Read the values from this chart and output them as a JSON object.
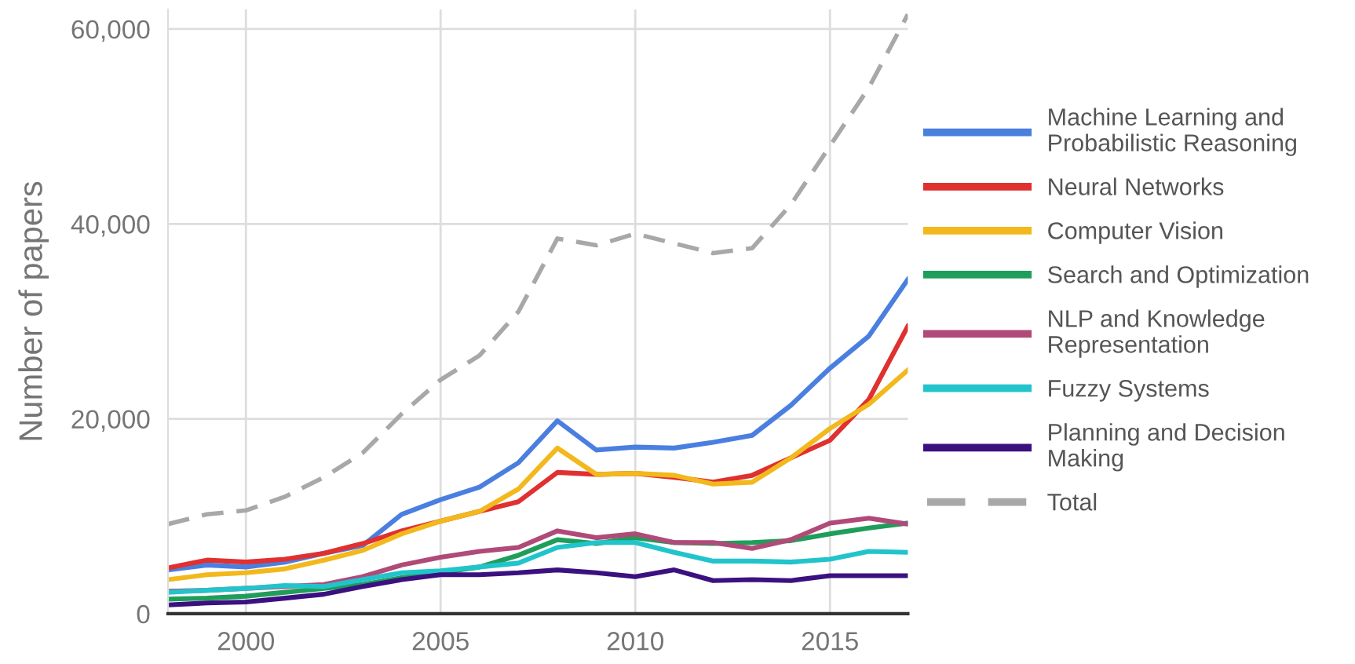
{
  "chart_data": {
    "type": "line",
    "ylabel": "Number of papers",
    "x": [
      1998,
      1999,
      2000,
      2001,
      2002,
      2003,
      2004,
      2005,
      2006,
      2007,
      2008,
      2009,
      2010,
      2011,
      2012,
      2013,
      2014,
      2015,
      2016,
      2017
    ],
    "xlim": [
      1998,
      2017
    ],
    "xticks": [
      2000,
      2005,
      2010,
      2015
    ],
    "ylim": [
      0,
      62000
    ],
    "yticks": [
      {
        "value": 0,
        "label": "0"
      },
      {
        "value": 20000,
        "label": "20,000"
      },
      {
        "value": 40000,
        "label": "40,000"
      },
      {
        "value": 60000,
        "label": "60,000"
      }
    ],
    "grid": true,
    "legend": "right",
    "series": [
      {
        "name": "Machine Learning and Probabilistic Reasoning",
        "color": "#4a7fe0",
        "values": [
          4500,
          5000,
          4800,
          5300,
          6200,
          7000,
          10200,
          11700,
          13000,
          15500,
          19800,
          16800,
          17100,
          17000,
          17600,
          18300,
          21400,
          25200,
          28500,
          34300
        ]
      },
      {
        "name": "Neural Networks",
        "color": "#e03030",
        "values": [
          4700,
          5500,
          5300,
          5600,
          6200,
          7200,
          8500,
          9500,
          10500,
          11500,
          14500,
          14300,
          14400,
          14000,
          13500,
          14200,
          16000,
          17800,
          22000,
          29500
        ]
      },
      {
        "name": "Computer Vision",
        "color": "#f2b81c",
        "values": [
          3500,
          4000,
          4200,
          4600,
          5500,
          6500,
          8200,
          9500,
          10500,
          12800,
          17000,
          14300,
          14400,
          14200,
          13300,
          13500,
          16000,
          19000,
          21500,
          25000
        ]
      },
      {
        "name": "Search and Optimization",
        "color": "#1e9e5a",
        "values": [
          1500,
          1600,
          1800,
          2200,
          2600,
          3000,
          3700,
          4200,
          4800,
          6000,
          7600,
          7200,
          7800,
          7300,
          7200,
          7300,
          7500,
          8200,
          8800,
          9300
        ]
      },
      {
        "name": "NLP and Knowledge Representation",
        "color": "#b04a78",
        "values": [
          2300,
          2400,
          2600,
          2800,
          3000,
          3800,
          5000,
          5800,
          6400,
          6800,
          8500,
          7800,
          8200,
          7300,
          7300,
          6700,
          7600,
          9300,
          9800,
          9200
        ]
      },
      {
        "name": "Fuzzy Systems",
        "color": "#22c4cc",
        "values": [
          2200,
          2400,
          2600,
          2900,
          2800,
          3500,
          4200,
          4400,
          4800,
          5200,
          6800,
          7300,
          7300,
          6300,
          5400,
          5400,
          5300,
          5600,
          6400,
          6300
        ]
      },
      {
        "name": "Planning and Decision Making",
        "color": "#3b1180",
        "values": [
          900,
          1100,
          1200,
          1600,
          2000,
          2800,
          3500,
          4000,
          4000,
          4200,
          4500,
          4200,
          3800,
          4500,
          3400,
          3500,
          3400,
          3900,
          3900,
          3900
        ]
      },
      {
        "name": "Total",
        "color": "#a8a8a8",
        "line_style": "dashed",
        "values": [
          9200,
          10200,
          10600,
          12000,
          14000,
          16500,
          20500,
          24000,
          26500,
          31000,
          38500,
          37800,
          39000,
          38000,
          37000,
          37500,
          42000,
          48000,
          54000,
          61500
        ]
      }
    ]
  }
}
